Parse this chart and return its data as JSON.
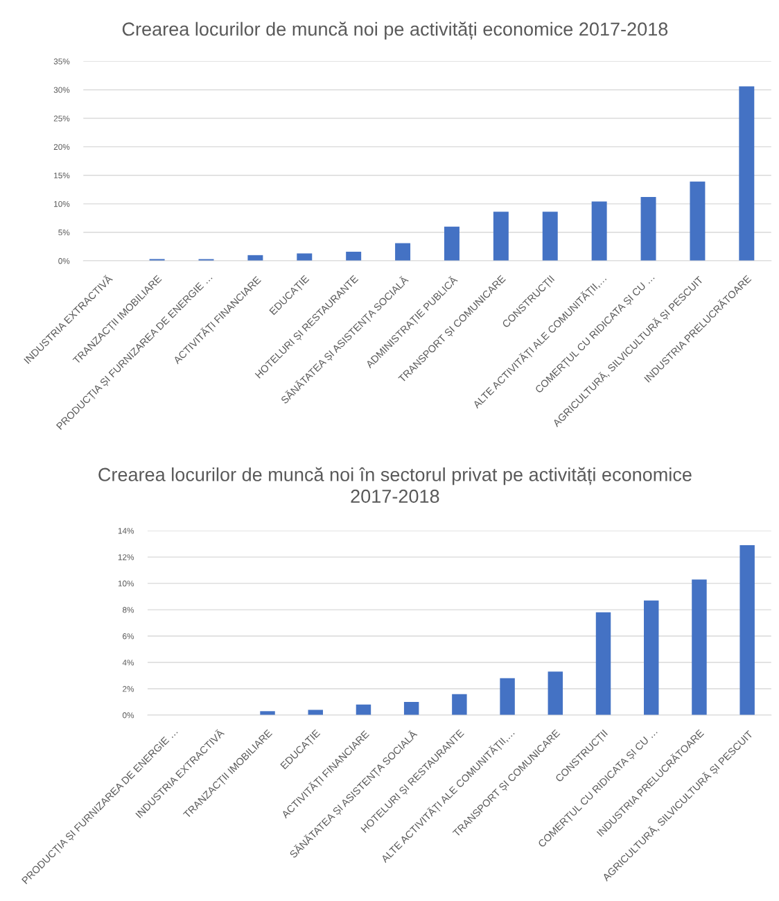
{
  "chart_data": [
    {
      "type": "bar",
      "title": "Crearea locurilor de muncă noi pe activități economice 2017-2018",
      "categories": [
        "INDUSTRIA EXTRACTIVĂ",
        "TRANZACȚII IMOBILIARE",
        "PRODUCȚIA ȘI FURNIZAREA DE ENERGIE …",
        "ACTIVITĂȚI FINANCIARE",
        "EDUCAȚIE",
        "HOTELURI ȘI RESTAURANTE",
        "SĂNĂTATEA ȘI ASISTENȚA SOCIALĂ",
        "ADMINISTRAȚIE PUBLICĂ",
        "TRANSPORT ȘI COMUNICARE",
        "CONSTRUCȚII",
        "ALTE ACTIVITĂȚI ALE COMUNITĂȚII,…",
        "COMERȚUL CU RIDICATA ȘI CU …",
        "AGRICULTURĂ, SILVICULTURĂ ȘI PESCUIT",
        "INDUSTRIA PRELUCRĂTOARE"
      ],
      "values": [
        0,
        0.3,
        0.3,
        1.0,
        1.3,
        1.6,
        3.1,
        6.0,
        8.6,
        8.6,
        10.4,
        11.2,
        13.9,
        30.6
      ],
      "color": "#4472c4",
      "ylim": [
        0,
        35
      ],
      "yticks": [
        {
          "value": 0,
          "label": "0%"
        },
        {
          "value": 5,
          "label": "5%"
        },
        {
          "value": 10,
          "label": "10%"
        },
        {
          "value": 15,
          "label": "15%"
        },
        {
          "value": 20,
          "label": "20%"
        },
        {
          "value": 25,
          "label": "25%"
        },
        {
          "value": 30,
          "label": "30%"
        },
        {
          "value": 35,
          "label": "35%"
        }
      ],
      "grid": "y"
    },
    {
      "type": "bar",
      "title": "Crearea locurilor de muncă noi în sectorul privat pe activități economice\n2017-2018",
      "categories": [
        "PRODUCȚIA ȘI FURNIZAREA DE ENERGIE …",
        "INDUSTRIA EXTRACTIVĂ",
        "TRANZACȚII IMOBILIARE",
        "EDUCAȚIE",
        "ACTIVITĂȚI FINANCIARE",
        "SĂNĂTATEA ȘI ASISTENȚA SOCIALĂ",
        "HOTELURI ȘI RESTAURANTE",
        "ALTE ACTIVITĂȚI ALE COMUNITĂȚII,…",
        "TRANSPORT ȘI COMUNICARE",
        "CONSTRUCȚII",
        "COMERȚUL CU RIDICATA ȘI CU …",
        "INDUSTRIA PRELUCRĂTOARE",
        "AGRICULTURĂ, SILVICULTURĂ ȘI PESCUIT"
      ],
      "values": [
        0,
        0,
        0.3,
        0.4,
        0.8,
        1.0,
        1.6,
        2.8,
        3.3,
        7.8,
        8.7,
        10.3,
        12.9
      ],
      "color": "#4472c4",
      "ylim": [
        0,
        14
      ],
      "yticks": [
        {
          "value": 0,
          "label": "0%"
        },
        {
          "value": 2,
          "label": "2%"
        },
        {
          "value": 4,
          "label": "4%"
        },
        {
          "value": 6,
          "label": "6%"
        },
        {
          "value": 8,
          "label": "8%"
        },
        {
          "value": 10,
          "label": "10%"
        },
        {
          "value": 12,
          "label": "12%"
        },
        {
          "value": 14,
          "label": "14%"
        }
      ],
      "grid": "y"
    }
  ]
}
